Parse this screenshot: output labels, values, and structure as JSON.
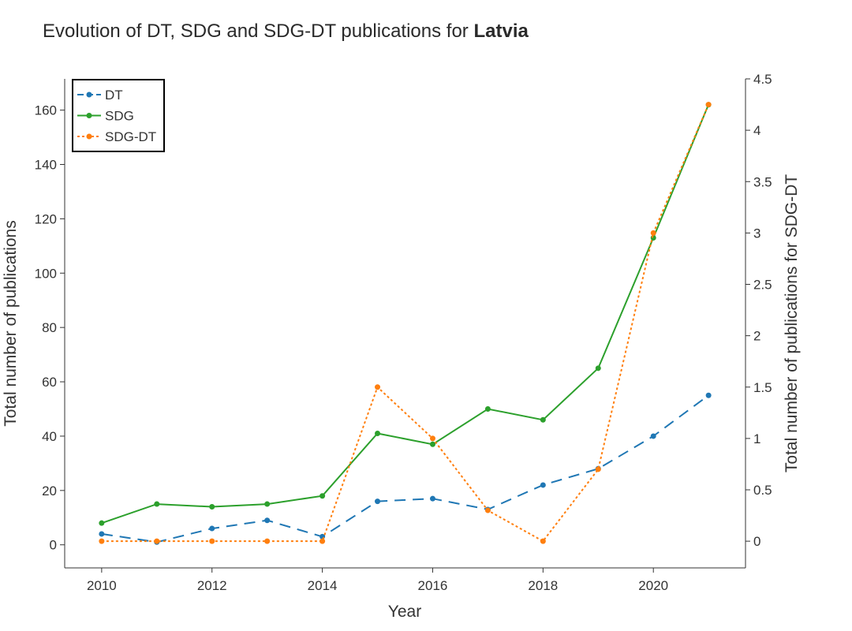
{
  "chart_data": {
    "type": "line",
    "title_prefix": "Evolution of DT, SDG and SDG-DT publications for ",
    "title_country": "Latvia",
    "xlabel": "Year",
    "ylabel_left": "Total number of publications",
    "ylabel_right": "Total number of publications for SDG-DT",
    "x": [
      2010,
      2011,
      2012,
      2013,
      2014,
      2015,
      2016,
      2017,
      2018,
      2019,
      2020,
      2021
    ],
    "xlim": [
      2009.33,
      2021.67
    ],
    "x_ticks": [
      2010,
      2012,
      2014,
      2016,
      2018,
      2020
    ],
    "ylim_left": [
      -8.5,
      171.5
    ],
    "y_ticks_left": [
      0,
      20,
      40,
      60,
      80,
      100,
      120,
      140,
      160
    ],
    "ylim_right": [
      -0.26,
      4.5
    ],
    "y_ticks_right": [
      0,
      0.5,
      1,
      1.5,
      2,
      2.5,
      3,
      3.5,
      4,
      4.5
    ],
    "legend_position": "top-left",
    "grid": false,
    "series": [
      {
        "name": "DT",
        "axis": "left",
        "style": "dashed",
        "color": "#1f77b4",
        "values": [
          4,
          1,
          6,
          9,
          3,
          16,
          17,
          13,
          22,
          28,
          40,
          55
        ]
      },
      {
        "name": "SDG",
        "axis": "left",
        "style": "solid",
        "color": "#2ca02c",
        "values": [
          8,
          15,
          14,
          15,
          18,
          41,
          37,
          50,
          46,
          65,
          113,
          162
        ]
      },
      {
        "name": "SDG-DT",
        "axis": "right",
        "style": "dotted",
        "color": "#ff7f0e",
        "values": [
          0,
          0,
          0,
          0,
          0,
          1.5,
          1,
          0.3,
          0,
          0.7,
          3,
          4.25
        ]
      }
    ]
  }
}
